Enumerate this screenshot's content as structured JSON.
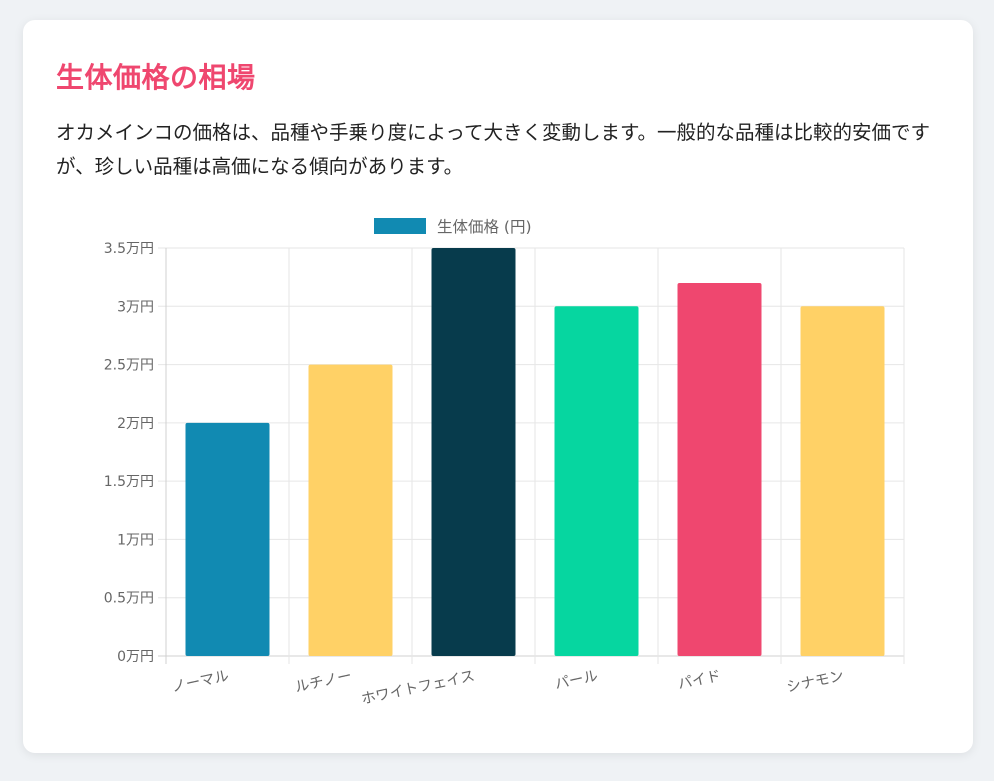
{
  "section": {
    "title": "生体価格の相場",
    "description": "オカメインコの価格は、品種や手乗り度によって大きく変動します。一般的な品種は比較的安価ですが、珍しい品種は高価になる傾向があります。"
  },
  "chart_data": {
    "type": "bar",
    "categories": [
      "ノーマル",
      "ルチノー",
      "ホワイトフェイス",
      "パール",
      "パイド",
      "シナモン"
    ],
    "series": [
      {
        "name": "生体価格 (円)",
        "values": [
          20000,
          25000,
          35000,
          30000,
          32000,
          30000
        ],
        "colors": [
          "#118ab2",
          "#ffd166",
          "#073b4c",
          "#06d6a0",
          "#ef476f",
          "#ffd166"
        ]
      }
    ],
    "legend_swatch_color": "#118ab2",
    "y_ticks": [
      0,
      5000,
      10000,
      15000,
      20000,
      25000,
      30000,
      35000
    ],
    "y_tick_labels": [
      "0万円",
      "0.5万円",
      "1万円",
      "1.5万円",
      "2万円",
      "2.5万円",
      "3万円",
      "3.5万円"
    ],
    "ylim": [
      0,
      35000
    ],
    "grid": true,
    "legend_position": "top"
  }
}
